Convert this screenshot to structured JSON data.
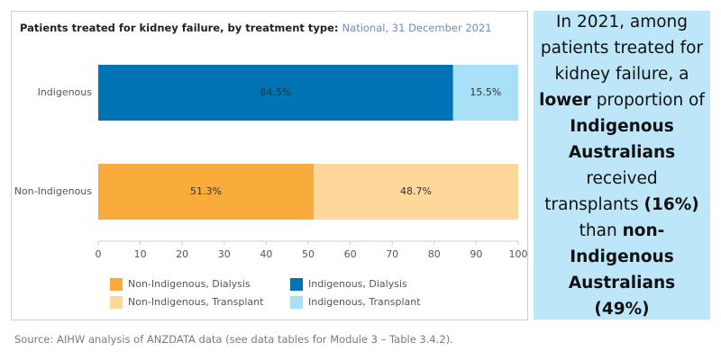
{
  "chart_data": {
    "type": "stacked-hbar",
    "title": "Patients treated for kidney failure, by treatment type:",
    "subtitle": "National, 31 December 2021",
    "categories": [
      "Indigenous",
      "Non-Indigenous"
    ],
    "series": [
      {
        "name": "Non-Indigenous, Dialysis",
        "color": "#f9ab3c",
        "values": [
          null,
          51.3
        ],
        "value_labels": [
          null,
          "51.3%"
        ]
      },
      {
        "name": "Non-Indigenous, Transplant",
        "color": "#fdd89a",
        "values": [
          null,
          48.7
        ],
        "value_labels": [
          null,
          "48.7%"
        ]
      },
      {
        "name": "Indigenous, Dialysis",
        "color": "#0073b4",
        "values": [
          84.5,
          null
        ],
        "value_labels": [
          "84.5%",
          null
        ]
      },
      {
        "name": "Indigenous, Transplant",
        "color": "#a8e0f8",
        "values": [
          15.5,
          null
        ],
        "value_labels": [
          "15.5%",
          null
        ]
      }
    ],
    "xlim": [
      0,
      100
    ],
    "xticks": [
      0,
      10,
      20,
      30,
      40,
      50,
      60,
      70,
      80,
      90,
      100
    ],
    "grid": false,
    "legend": "bottom"
  },
  "panel": {
    "runs": [
      {
        "text": "In 2021, among patients treated for kidney failure, a ",
        "bold": false
      },
      {
        "text": "lower",
        "bold": true
      },
      {
        "text": " proportion of ",
        "bold": false
      },
      {
        "text": "Indigenous Australians",
        "bold": true
      },
      {
        "text": " received transplants ",
        "bold": false
      },
      {
        "text": "(16%)",
        "bold": true
      },
      {
        "text": " than ",
        "bold": false
      },
      {
        "text": "non-Indigenous Australians (49%)",
        "bold": true
      }
    ]
  },
  "source": "Source: AIHW analysis of ANZDATA data (see data tables for Module 3 – Table 3.4.2)."
}
